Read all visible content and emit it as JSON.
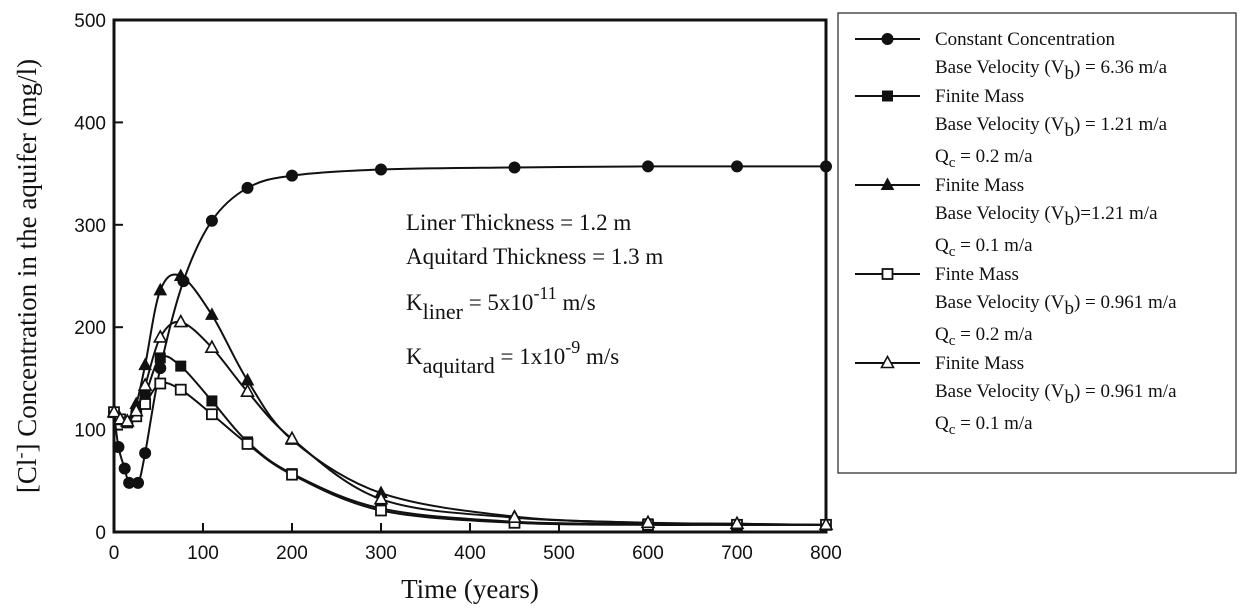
{
  "chart_data": {
    "type": "line",
    "title": "",
    "xlabel": "Time (years)",
    "ylabel_main": "[Cl",
    "ylabel_sup": "-",
    "ylabel_rest": "] Concentration in the aquifer (mg/l)",
    "xlim": [
      0,
      800
    ],
    "ylim": [
      0,
      500
    ],
    "xticks": [
      0,
      100,
      200,
      300,
      400,
      500,
      600,
      700,
      800
    ],
    "yticks": [
      0,
      100,
      200,
      300,
      400,
      500
    ],
    "grid": false,
    "legend_position": "right",
    "series": [
      {
        "name_lines": [
          "Constant Concentration",
          "Base Velocity (V",
          "b",
          ") = 6.36 m/a"
        ],
        "marker": "circle-filled",
        "x": [
          0,
          5,
          12,
          17,
          27,
          35,
          52,
          78,
          110,
          150,
          200,
          300,
          450,
          600,
          700,
          800
        ],
        "y": [
          117,
          83,
          62,
          48,
          48,
          77,
          160,
          245,
          304,
          336,
          348,
          354,
          356,
          357,
          357,
          357
        ]
      },
      {
        "name_lines": [
          "Finite Mass",
          "Base Velocity (V",
          "b",
          ") = 1.21 m/a",
          "Q",
          "c",
          " = 0.2 m/a"
        ],
        "marker": "square-filled",
        "x": [
          0,
          7,
          15,
          25,
          35,
          52,
          75,
          110,
          150,
          200,
          300,
          450,
          600,
          700,
          800
        ],
        "y": [
          117,
          110,
          108,
          115,
          133,
          170,
          162,
          128,
          88,
          57,
          23,
          10,
          8,
          7,
          7
        ]
      },
      {
        "name_lines": [
          "Finite Mass",
          "Base Velocity (V",
          "b",
          ")=1.21 m/a",
          "Q",
          "c",
          " = 0.1 m/a"
        ],
        "marker": "triangle-filled",
        "x": [
          0,
          7,
          15,
          25,
          35,
          52,
          75,
          110,
          150,
          200,
          300,
          450,
          600,
          700,
          800
        ],
        "y": [
          117,
          110,
          108,
          125,
          163,
          236,
          250,
          212,
          148,
          90,
          38,
          15,
          9,
          8,
          7
        ]
      },
      {
        "name_lines": [
          "Finte Mass",
          "Base Velocity (V",
          "b",
          ") = 0.961 m/a",
          "Q",
          "c",
          " = 0.2 m/a"
        ],
        "marker": "square-open",
        "x": [
          0,
          7,
          15,
          25,
          35,
          52,
          75,
          110,
          150,
          200,
          300,
          450,
          600,
          700,
          800
        ],
        "y": [
          117,
          110,
          107,
          113,
          125,
          145,
          139,
          115,
          86,
          56,
          21,
          9,
          7,
          7,
          7
        ]
      },
      {
        "name_lines": [
          "Finite Mass",
          "Base Velocity (V",
          "b",
          ") = 0.961 m/a",
          "Q",
          "c",
          " = 0.1 m/a"
        ],
        "marker": "triangle-open",
        "x": [
          0,
          7,
          15,
          25,
          35,
          52,
          75,
          110,
          150,
          200,
          300,
          450,
          600,
          700,
          800
        ],
        "y": [
          117,
          110,
          108,
          118,
          143,
          190,
          205,
          180,
          137,
          91,
          32,
          14,
          9,
          8,
          7
        ]
      }
    ],
    "annotations": {
      "liner": "Liner Thickness = 1.2 m",
      "aquitard": "Aquitard Thickness = 1.3 m",
      "k_liner_base": "K",
      "k_liner_sub": "liner",
      "k_liner_eq": " = 5x10",
      "k_liner_exp": "-11",
      "k_liner_unit": " m/s",
      "k_aq_base": "K",
      "k_aq_sub": "aquitard",
      "k_aq_eq": " = 1x10",
      "k_aq_exp": "-9",
      "k_aq_unit": " m/s"
    }
  }
}
